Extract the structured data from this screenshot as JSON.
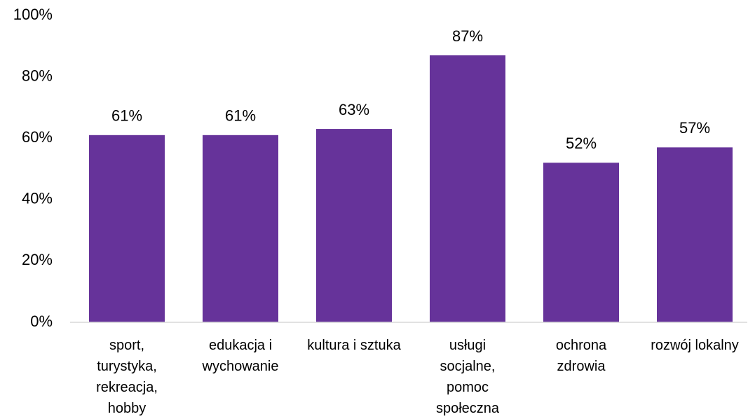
{
  "chart_data": {
    "type": "bar",
    "categories": [
      "sport, turystyka, rekreacja, hobby",
      "edukacja i wychowanie",
      "kultura i sztuka",
      "usługi socjalne, pomoc społeczna",
      "ochrona zdrowia",
      "rozwój lokalny"
    ],
    "values": [
      61,
      61,
      63,
      87,
      52,
      57
    ],
    "value_labels": [
      "61%",
      "61%",
      "63%",
      "87%",
      "52%",
      "57%"
    ],
    "color": "#66339a",
    "ylim": [
      0,
      100
    ],
    "yticks": [
      {
        "value": 0,
        "label": "0%"
      },
      {
        "value": 20,
        "label": "20%"
      },
      {
        "value": 40,
        "label": "40%"
      },
      {
        "value": 60,
        "label": "60%"
      },
      {
        "value": 80,
        "label": "80%"
      },
      {
        "value": 100,
        "label": "100%"
      }
    ],
    "grid": false
  }
}
